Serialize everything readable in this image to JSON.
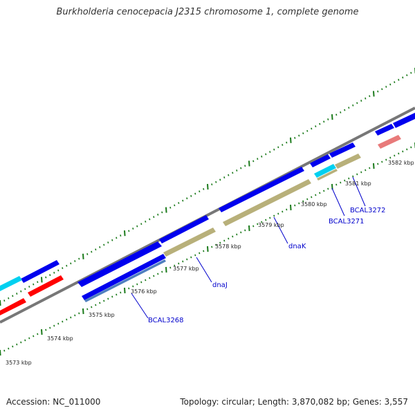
{
  "title": "Burkholderia cenocepacia J2315 chromosome 1, complete genome",
  "footer": {
    "accession": "Accession: NC_011000",
    "summary": "Topology: circular; Length: 3,870,082 bp; Genes: 3,557"
  },
  "colors": {
    "cds_blue": "#0000ee",
    "cds_olive": "#b8b07a",
    "cds_steelblue": "#4f7fbf",
    "cds_cyan": "#00d0f0",
    "cds_red": "#ff0000",
    "cds_salmon": "#e87a7a",
    "tick_green": "#1a7a1a",
    "ruler_gray": "#777777",
    "label_blue": "#0000cc"
  },
  "kbp_labels": [
    "3573 kbp",
    "3574 kbp",
    "3575 kbp",
    "3576 kbp",
    "3577 kbp",
    "3578 kbp",
    "3579 kbp",
    "3580 kbp",
    "3581 kbp",
    "3582 kbp"
  ],
  "gene_labels": [
    "BCAL3268",
    "dnaJ",
    "dnaK",
    "BCAL3271",
    "BCAL3272"
  ]
}
